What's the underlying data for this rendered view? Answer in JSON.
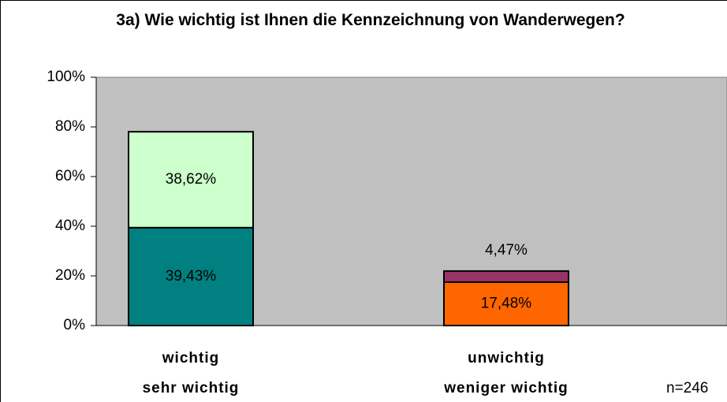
{
  "chart_data": {
    "type": "stacked-bar",
    "title": "3a) Wie wichtig ist Ihnen die Kennzeichnung von Wanderwegen?",
    "annotation": "n=246",
    "stacks": [
      {
        "segments": [
          {
            "name": "sehr wichtig",
            "value": 39.43,
            "value_label": "39,43%",
            "color": "#008080"
          },
          {
            "name": "wichtig",
            "value": 38.62,
            "value_label": "38,62%",
            "color": "#ccffcc"
          }
        ]
      },
      {
        "segments": [
          {
            "name": "weniger wichtig",
            "value": 17.48,
            "value_label": "17,48%",
            "color": "#ff6600"
          },
          {
            "name": "unwichtig",
            "value": 4.47,
            "value_label": "4,47%",
            "color": "#993366"
          }
        ]
      }
    ],
    "ylim": [
      0,
      100
    ],
    "yticks": [
      {
        "value": 0,
        "label": "0%"
      },
      {
        "value": 20,
        "label": "20%"
      },
      {
        "value": 40,
        "label": "40%"
      },
      {
        "value": 60,
        "label": "60%"
      },
      {
        "value": 80,
        "label": "80%"
      },
      {
        "value": 100,
        "label": "100%"
      }
    ],
    "grid": false
  }
}
